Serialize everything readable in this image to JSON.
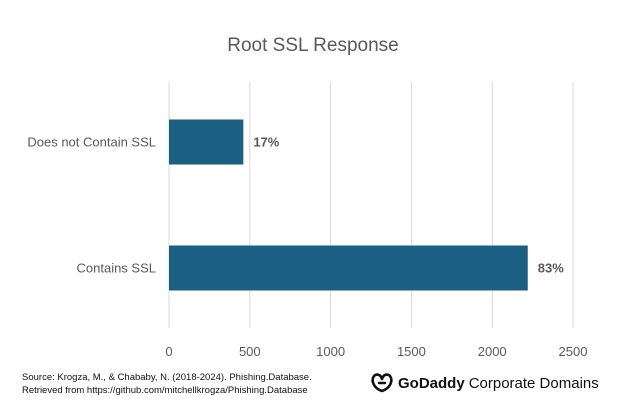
{
  "chart_data": {
    "type": "bar",
    "orientation": "horizontal",
    "title": "Root SSL Response",
    "categories": [
      "Does not Contain SSL",
      "Contains SSL"
    ],
    "values": [
      460,
      2220
    ],
    "data_labels": [
      "17%",
      "83%"
    ],
    "xlim": [
      0,
      2500
    ],
    "xticks": [
      "0",
      "500",
      "1000",
      "1500",
      "2000",
      "2500"
    ],
    "grid": true,
    "legend": "none"
  },
  "colors": {
    "bar": "#1b5f82",
    "grid": "#d9d9d9",
    "title": "#595959",
    "tick_label": "#595959",
    "data_label": "#595959"
  },
  "footer": {
    "source_line1": "Source: Krogza, M., & Chababy, N. (2018-2024). Phishing.Database.",
    "source_line2": "Retrieved from  https://github.com/mitchellkrogza/Phishing.Database",
    "brand_bold": "GoDaddy",
    "brand_light": "Corporate Domains",
    "logo_icon": "godaddy-logo-icon"
  }
}
